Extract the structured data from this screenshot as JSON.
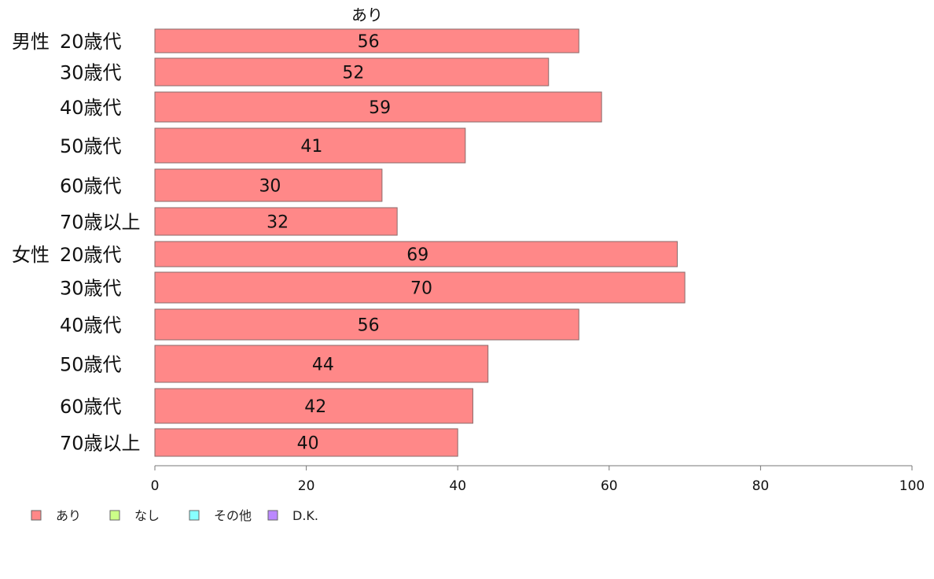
{
  "chart_data": {
    "type": "bar",
    "orientation": "horizontal",
    "title": "あり",
    "groups": [
      {
        "name": "男性",
        "categories": [
          "20歳代",
          "30歳代",
          "40歳代",
          "50歳代",
          "60歳代",
          "70歳以上"
        ],
        "values": [
          56,
          52,
          59,
          41,
          30,
          32
        ]
      },
      {
        "name": "女性",
        "categories": [
          "20歳代",
          "30歳代",
          "40歳代",
          "50歳代",
          "60歳代",
          "70歳以上"
        ],
        "values": [
          69,
          70,
          56,
          44,
          42,
          40
        ]
      }
    ],
    "series": [
      {
        "name": "あり",
        "color": "#ff8888"
      }
    ],
    "xlim": [
      0,
      100
    ],
    "xticks": [
      0,
      20,
      40,
      60,
      80,
      100
    ],
    "grid": false,
    "legend": {
      "position": "bottom-left",
      "entries": [
        {
          "label": "あり",
          "color": "#ff8888"
        },
        {
          "label": "なし",
          "color": "#ccff88"
        },
        {
          "label": "その他",
          "color": "#88ffff"
        },
        {
          "label": "D.K.",
          "color": "#bb88ff"
        }
      ]
    }
  }
}
